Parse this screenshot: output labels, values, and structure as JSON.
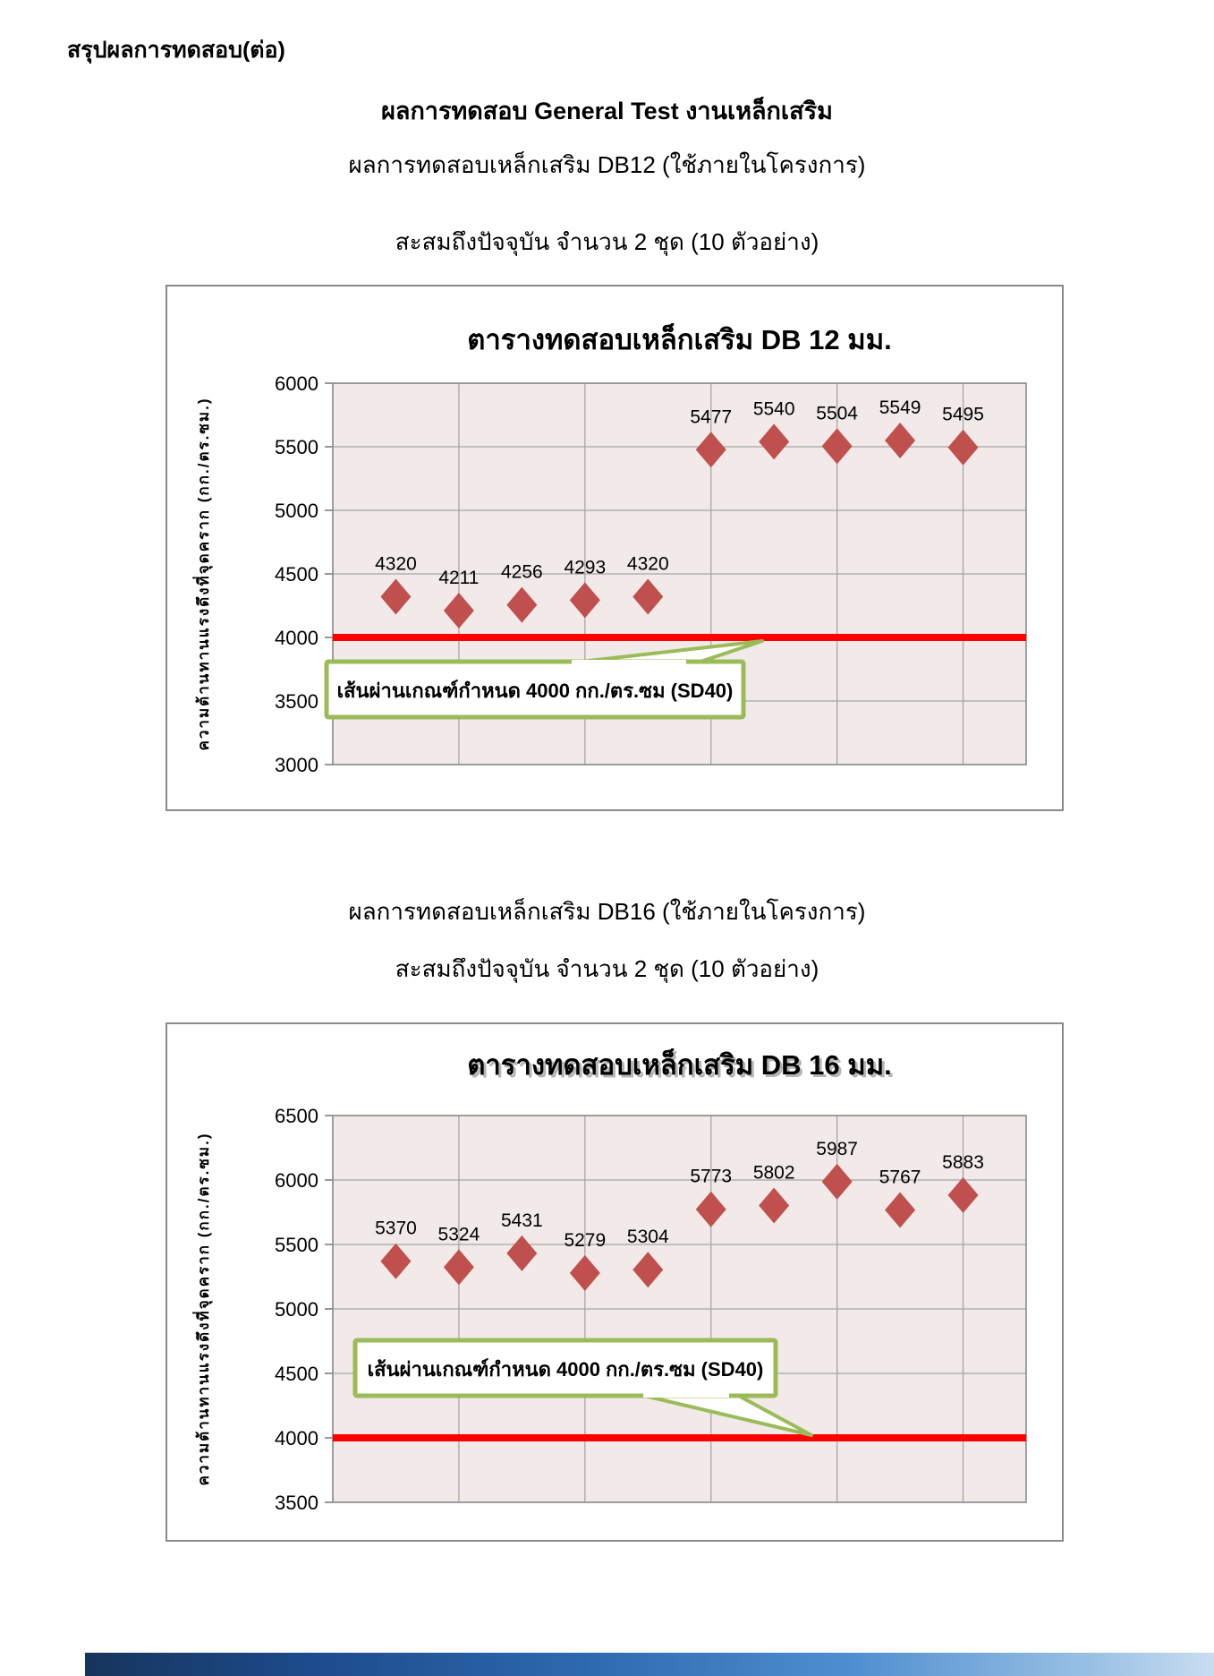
{
  "page": {
    "header": "สรุปผลการทดสอบ(ต่อ)",
    "title_bold": "ผลการทดสอบ General Test งานเหล็กเสริม",
    "section1": {
      "line1": "ผลการทดสอบเหล็กเสริม DB12 (ใช้ภายในโครงการ)",
      "line2": "สะสมถึงปัจจุบัน จำนวน 2 ชุด (10 ตัวอย่าง)"
    },
    "section2": {
      "line1": "ผลการทดสอบเหล็กเสริม DB16 (ใช้ภายในโครงการ)",
      "line2": "สะสมถึงปัจจุบัน จำนวน 2 ชุด (10 ตัวอย่าง)"
    },
    "footer_bar": {
      "colors": [
        "#16355c",
        "#2e6ab0",
        "#9cc3e5"
      ]
    }
  },
  "chart_data": [
    {
      "type": "scatter",
      "title": "ตารางทดสอบเหล็กเสริม DB 12 มม.",
      "ylabel": "ความต้านทานแรงดึงที่จุดคราก  (กก./ตร.ซม.)",
      "xlabel": "",
      "x": [
        1,
        2,
        3,
        4,
        5,
        6,
        7,
        8,
        9,
        10
      ],
      "values": [
        4320,
        4211,
        4256,
        4293,
        4320,
        5477,
        5540,
        5504,
        5549,
        5495
      ],
      "point_labels": [
        "4320",
        "4211",
        "4256",
        "4293",
        "4320",
        "5477",
        "5540",
        "5504",
        "5549",
        "5495"
      ],
      "ylim": [
        3000,
        6000
      ],
      "y_ticks": [
        6000,
        5500,
        5000,
        4500,
        4000,
        3500,
        3000
      ],
      "xlim": [
        0,
        11
      ],
      "x_grid_step": 2,
      "grid": true,
      "legend": "none",
      "marker_shape": "diamond",
      "marker_color": "#c0504d",
      "plot_bg": "#f2e9e9",
      "gridline_color": "#a6a6a6",
      "threshold": {
        "value": 4000,
        "color": "#fe0000",
        "callout_label": "เส้นผ่านเกณฑ์กำหนด 4000 กก./ตร.ซม (SD40)",
        "callout_border": "#9bbb59"
      }
    },
    {
      "type": "scatter",
      "title": "ตารางทดสอบเหล็กเสริม DB 16 มม.",
      "ylabel": "ความต้านทานแรงดึงที่จุดคราก  (กก./ตร.ซม.)",
      "xlabel": "",
      "x": [
        1,
        2,
        3,
        4,
        5,
        6,
        7,
        8,
        9,
        10
      ],
      "values": [
        5370,
        5324,
        5431,
        5279,
        5304,
        5773,
        5802,
        5987,
        5767,
        5883
      ],
      "point_labels": [
        "5370",
        "5324",
        "5431",
        "5279",
        "5304",
        "5773",
        "5802",
        "5987",
        "5767",
        "5883"
      ],
      "ylim": [
        3500,
        6500
      ],
      "y_ticks": [
        6500,
        6000,
        5500,
        5000,
        4500,
        4000,
        3500
      ],
      "xlim": [
        0,
        11
      ],
      "x_grid_step": 2,
      "grid": true,
      "legend": "none",
      "marker_shape": "diamond",
      "marker_color": "#c0504d",
      "plot_bg": "#f2e9e9",
      "gridline_color": "#a6a6a6",
      "threshold": {
        "value": 4000,
        "color": "#fe0000",
        "callout_label": "เส้นผ่านเกณฑ์กำหนด 4000 กก./ตร.ซม (SD40)",
        "callout_border": "#9bbb59"
      }
    }
  ]
}
